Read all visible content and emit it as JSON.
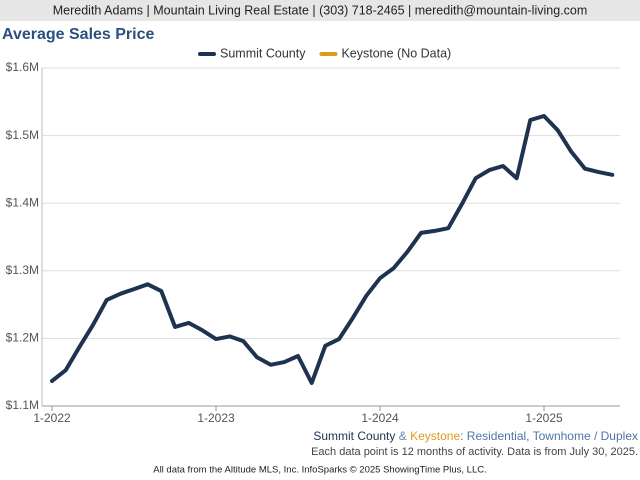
{
  "header": "Meredith Adams | Mountain Living Real Estate | (303) 718-2465 | meredith@mountain-living.com",
  "chart_data": {
    "type": "line",
    "title": "Average Sales Price",
    "categories": [
      "1-2022",
      null,
      null,
      null,
      null,
      null,
      null,
      null,
      null,
      null,
      null,
      null,
      "1-2023",
      null,
      null,
      null,
      null,
      null,
      null,
      null,
      null,
      null,
      null,
      null,
      "1-2024",
      null,
      null,
      null,
      null,
      null,
      null,
      null,
      null,
      null,
      null,
      null,
      "1-2025",
      null,
      null,
      null,
      null,
      null
    ],
    "series": [
      {
        "name": "Summit County",
        "color": "#1f3350",
        "values": [
          1137000,
          1153000,
          1187000,
          1220000,
          1257000,
          1266000,
          1273000,
          1280000,
          1270000,
          1217000,
          1223000,
          1212000,
          1199000,
          1203000,
          1196000,
          1172000,
          1161000,
          1165000,
          1174000,
          1134000,
          1189000,
          1199000,
          1230000,
          1263000,
          1289000,
          1304000,
          1328000,
          1356000,
          1359000,
          1363000,
          1399000,
          1437000,
          1449000,
          1455000,
          1437000,
          1523000,
          1529000,
          1508000,
          1476000,
          1451000,
          1446000,
          1442000
        ]
      },
      {
        "name": "Keystone (No Data)",
        "color": "#e09a1b",
        "values": [
          null,
          null,
          null,
          null,
          null,
          null,
          null,
          null,
          null,
          null,
          null,
          null,
          null,
          null,
          null,
          null,
          null,
          null,
          null,
          null,
          null,
          null,
          null,
          null,
          null,
          null,
          null,
          null,
          null,
          null,
          null,
          null,
          null,
          null,
          null,
          null,
          null,
          null,
          null,
          null,
          null,
          null
        ]
      }
    ],
    "ylim": [
      1100000,
      1600000
    ],
    "yticks": [
      {
        "value": 1100000,
        "label": "$1.1M"
      },
      {
        "value": 1200000,
        "label": "$1.2M"
      },
      {
        "value": 1300000,
        "label": "$1.3M"
      },
      {
        "value": 1400000,
        "label": "$1.4M"
      },
      {
        "value": 1500000,
        "label": "$1.5M"
      },
      {
        "value": 1600000,
        "label": "$1.6M"
      }
    ],
    "grid": true,
    "subtitle_parts": [
      "Summit County",
      "&",
      "Keystone",
      ": Residential, Townhome / Duplex"
    ],
    "note": "Each data point is 12 months of activity. Data is from July 30, 2025."
  },
  "footer": "All data from the Altitude MLS, Inc. InfoSparks © 2025 ShowingTime Plus, LLC."
}
